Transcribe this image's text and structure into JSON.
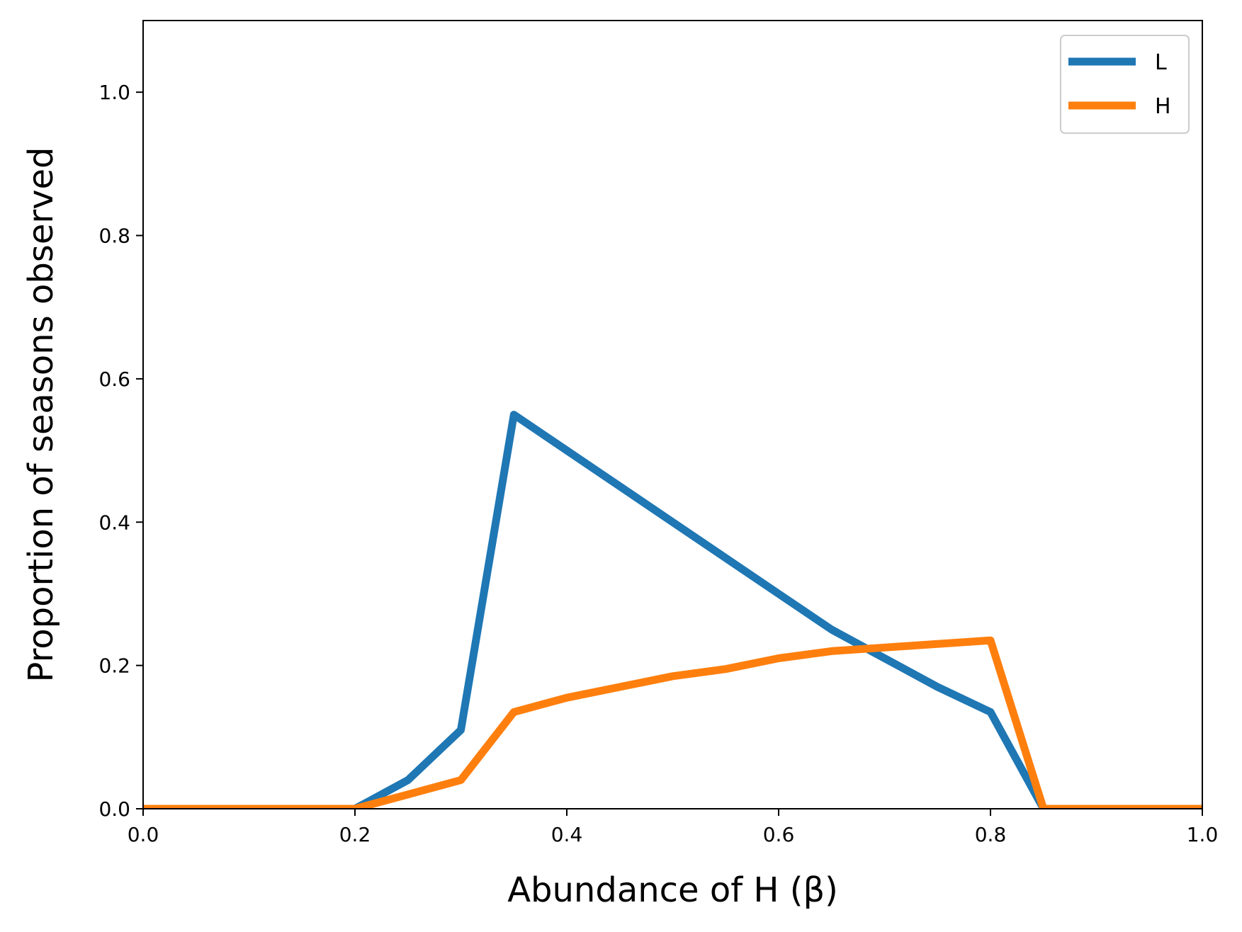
{
  "chart_data": {
    "type": "line",
    "title": "",
    "xlabel": "Abundance of H (β)",
    "ylabel": "Proportion of seasons observed",
    "xlim": [
      0.0,
      1.0
    ],
    "ylim": [
      0.0,
      1.1
    ],
    "xticks": [
      "0.0",
      "0.2",
      "0.4",
      "0.6",
      "0.8",
      "1.0"
    ],
    "yticks": [
      "0.0",
      "0.2",
      "0.4",
      "0.6",
      "0.8",
      "1.0"
    ],
    "grid": false,
    "legend_position": "top-right",
    "x": [
      0.0,
      0.05,
      0.1,
      0.15,
      0.2,
      0.25,
      0.3,
      0.35,
      0.4,
      0.45,
      0.5,
      0.55,
      0.6,
      0.65,
      0.7,
      0.75,
      0.8,
      0.85,
      0.9,
      0.95,
      1.0
    ],
    "series": [
      {
        "name": "L",
        "color": "#1f77b4",
        "values": [
          0.0,
          0.0,
          0.0,
          0.0,
          0.0,
          0.04,
          0.11,
          0.55,
          0.5,
          0.45,
          0.4,
          0.35,
          0.3,
          0.25,
          0.21,
          0.17,
          0.135,
          0.0,
          0.0,
          0.0,
          0.0
        ]
      },
      {
        "name": "H",
        "color": "#ff7f0e",
        "values": [
          0.0,
          0.0,
          0.0,
          0.0,
          0.0,
          0.02,
          0.04,
          0.135,
          0.155,
          0.17,
          0.185,
          0.195,
          0.21,
          0.22,
          0.225,
          0.23,
          0.235,
          0.0,
          0.0,
          0.0,
          0.0
        ]
      }
    ]
  }
}
